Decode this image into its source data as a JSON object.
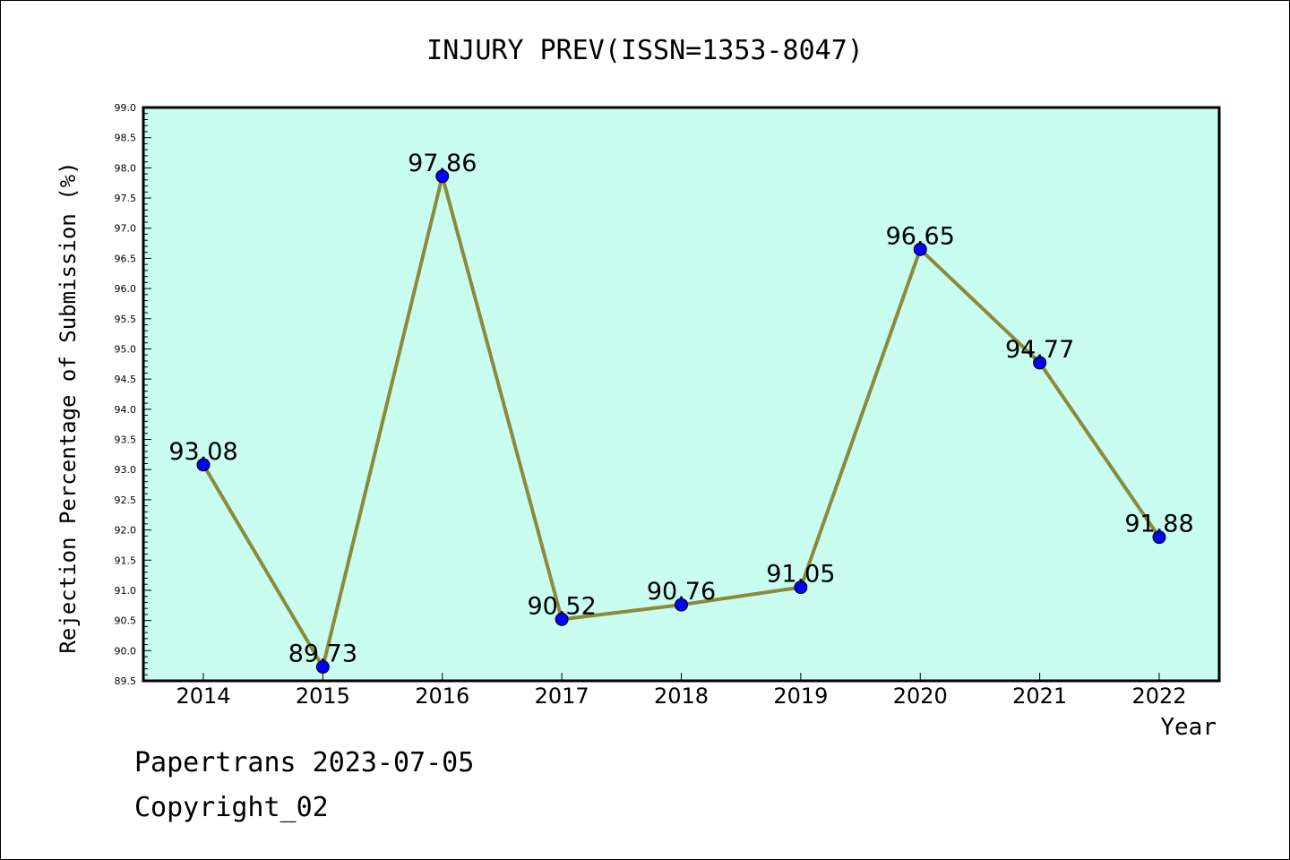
{
  "chart_data": {
    "type": "line",
    "title": "INJURY PREV(ISSN=1353-8047)",
    "xlabel": "Year",
    "ylabel": "Rejection Percentage of Submission (%)",
    "categories": [
      "2014",
      "2015",
      "2016",
      "2017",
      "2018",
      "2019",
      "2020",
      "2021",
      "2022"
    ],
    "series": [
      {
        "values": [
          93.08,
          89.73,
          97.86,
          90.52,
          90.76,
          91.05,
          96.65,
          94.77,
          91.88
        ]
      }
    ],
    "data_labels": [
      "93.08",
      "89.73",
      "97.86",
      "90.52",
      "90.76",
      "91.05",
      "96.65",
      "94.77",
      "91.88"
    ],
    "ylim": [
      89.5,
      99.0
    ],
    "y_major_step": 0.5,
    "y_tick_labels": [
      "89.5",
      "90.0",
      "90.5",
      "91.0",
      "91.5",
      "92.0",
      "92.5",
      "93.0",
      "93.5",
      "94.0",
      "94.5",
      "95.0",
      "95.5",
      "96.0",
      "96.5",
      "97.0",
      "97.5",
      "98.0",
      "98.5",
      "99.0"
    ],
    "grid": false,
    "legend": "none",
    "colors": {
      "plot_background": "#c8fdf0",
      "line": "#8b8a3a",
      "marker": "#0000ff"
    }
  },
  "footer": {
    "line1": "Papertrans 2023-07-05",
    "line2": "Copyright_02"
  }
}
